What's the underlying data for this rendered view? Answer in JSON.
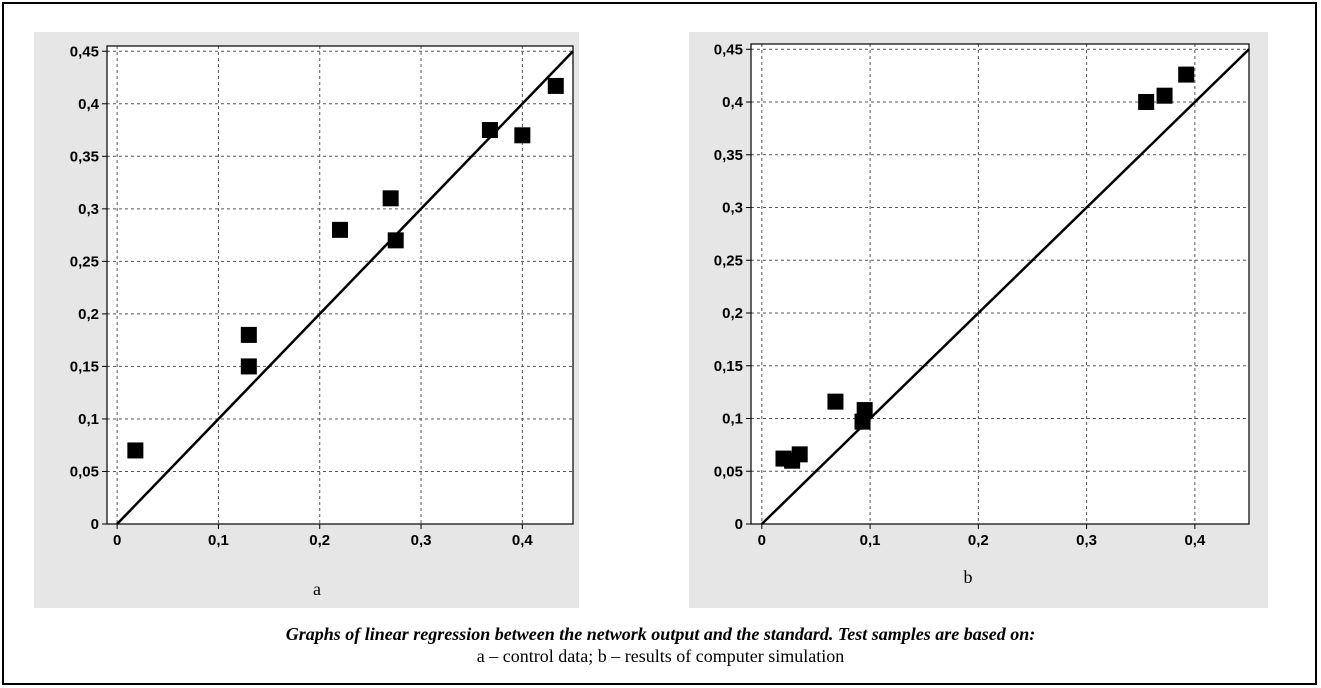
{
  "chart_data": [
    {
      "type": "scatter",
      "label": "a",
      "x_ticks": [
        "0",
        "0,1",
        "0,2",
        "0,3",
        "0,4"
      ],
      "y_ticks": [
        "0",
        "0,05",
        "0,1",
        "0,15",
        "0,2",
        "0,25",
        "0,3",
        "0,35",
        "0,4",
        "0,45"
      ],
      "xlim": [
        -0.01,
        0.45
      ],
      "ylim": [
        0,
        0.455
      ],
      "grid": true,
      "points": [
        {
          "x": 0.018,
          "y": 0.07
        },
        {
          "x": 0.13,
          "y": 0.18
        },
        {
          "x": 0.13,
          "y": 0.15
        },
        {
          "x": 0.22,
          "y": 0.28
        },
        {
          "x": 0.27,
          "y": 0.31
        },
        {
          "x": 0.275,
          "y": 0.27
        },
        {
          "x": 0.368,
          "y": 0.375
        },
        {
          "x": 0.4,
          "y": 0.37
        },
        {
          "x": 0.433,
          "y": 0.417
        }
      ],
      "line": {
        "from": [
          0,
          0
        ],
        "to": [
          0.45,
          0.45
        ]
      }
    },
    {
      "type": "scatter",
      "label": "b",
      "x_ticks": [
        "0",
        "0,1",
        "0,2",
        "0,3",
        "0,4"
      ],
      "y_ticks": [
        "0",
        "0,05",
        "0,1",
        "0,15",
        "0,2",
        "0,25",
        "0,3",
        "0,35",
        "0,4",
        "0,45"
      ],
      "xlim": [
        -0.01,
        0.45
      ],
      "ylim": [
        0,
        0.455
      ],
      "grid": true,
      "points": [
        {
          "x": 0.02,
          "y": 0.062
        },
        {
          "x": 0.028,
          "y": 0.06
        },
        {
          "x": 0.035,
          "y": 0.066
        },
        {
          "x": 0.068,
          "y": 0.116
        },
        {
          "x": 0.093,
          "y": 0.097
        },
        {
          "x": 0.095,
          "y": 0.108
        },
        {
          "x": 0.355,
          "y": 0.4
        },
        {
          "x": 0.372,
          "y": 0.406
        },
        {
          "x": 0.392,
          "y": 0.426
        }
      ],
      "line": {
        "from": [
          0,
          0
        ],
        "to": [
          0.45,
          0.45
        ]
      }
    }
  ],
  "caption": {
    "title": "Graphs of linear regression between the network output and the standard. Test samples are based on:",
    "subtitle": "a – control data; b – results of computer simulation"
  }
}
